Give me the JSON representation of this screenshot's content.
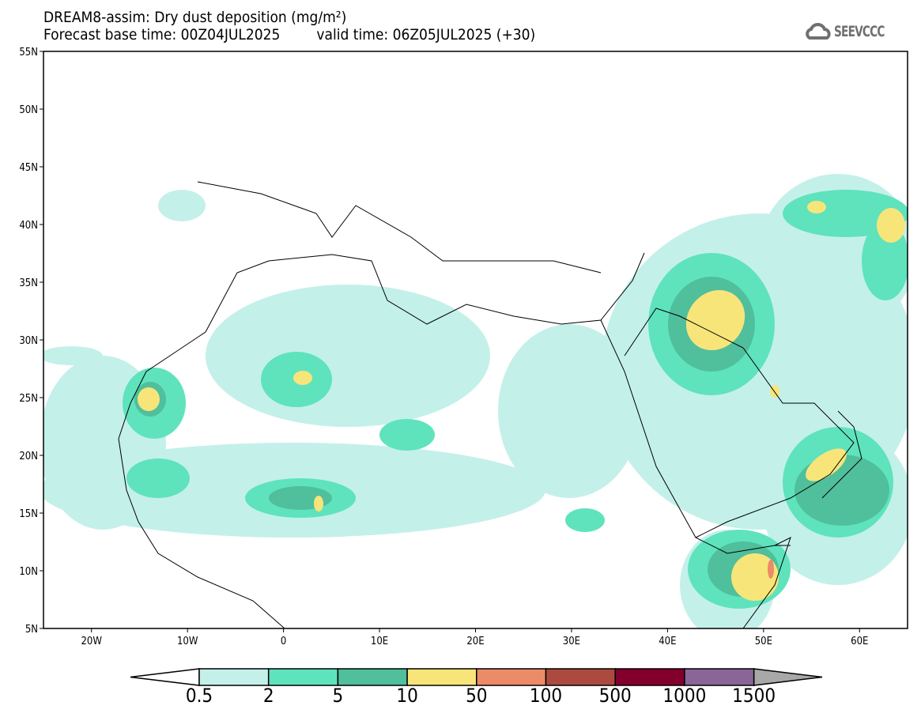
{
  "header": {
    "title": "DREAM8-assim: Dry dust deposition (mg/m²)",
    "base_time": "Forecast base time: 00Z04JUL2025",
    "valid_time": "valid time: 06Z05JUL2025 (+30)",
    "logo": "SEEVCCC"
  },
  "map": {
    "lat_labels": [
      "55N",
      "50N",
      "45N",
      "40N",
      "35N",
      "30N",
      "25N",
      "20N",
      "15N",
      "10N",
      "5N"
    ],
    "lon_labels": [
      "20W",
      "10W",
      "0",
      "10E",
      "20E",
      "30E",
      "40E",
      "50E",
      "60E"
    ],
    "extent": {
      "lon_min": -25,
      "lon_max": 65,
      "lat_min": 5,
      "lat_max": 55
    }
  },
  "colorbar": {
    "levels": [
      "0.5",
      "2",
      "5",
      "10",
      "50",
      "100",
      "500",
      "1000",
      "1500"
    ],
    "colors": [
      "#c4f0ea",
      "#5ee3bd",
      "#50bf9b",
      "#f7e57a",
      "#ec8b67",
      "#ad4a40",
      "#83002d",
      "#8a6598"
    ],
    "under_color": "#ffffff",
    "over_color": "#a8a8a8"
  }
}
